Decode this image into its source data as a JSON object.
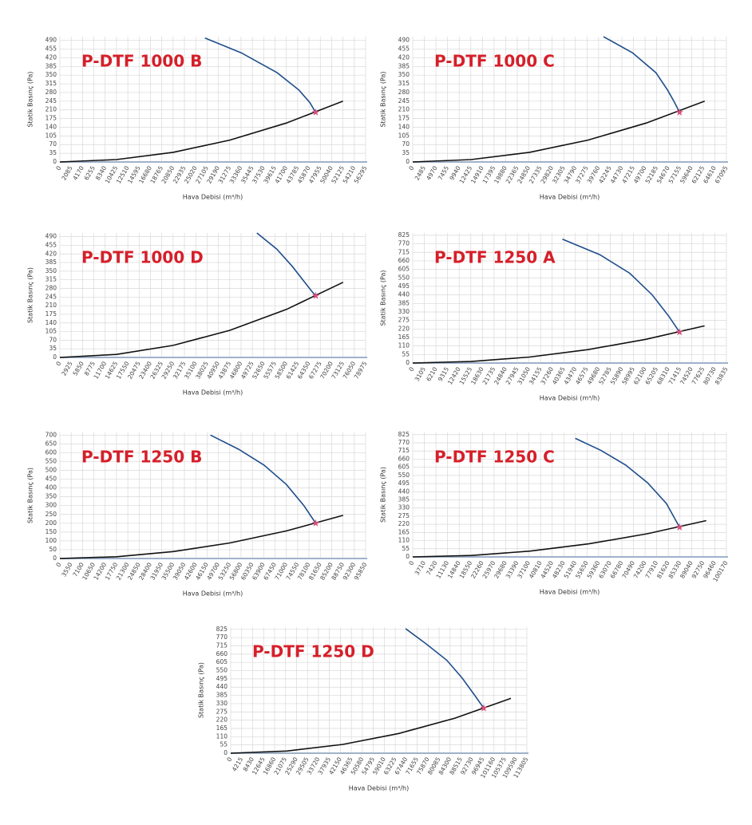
{
  "chart_data": [
    {
      "type": "line",
      "title": "P-DTF 1000 B",
      "y_label": "Statik Basınç (Pa)",
      "x_label": "Hava Debisi (m³/h)",
      "ylim": [
        0,
        505
      ],
      "yticks": [
        0,
        35,
        70,
        105,
        140,
        175,
        210,
        245,
        280,
        315,
        350,
        385,
        420,
        455,
        490
      ],
      "xlim": [
        0,
        56295
      ],
      "xticks": [
        0,
        2085,
        4170,
        6255,
        8340,
        10425,
        12510,
        14595,
        16680,
        18765,
        20850,
        22935,
        25020,
        27105,
        29190,
        31275,
        33360,
        35445,
        37530,
        39615,
        41700,
        43785,
        45870,
        47955,
        50040,
        52125,
        54210,
        56295
      ],
      "grid": true,
      "series": [
        {
          "color": "#1f4e8c",
          "x": [
            26700,
            33400,
            40000,
            44000,
            46000,
            47100
          ],
          "values": [
            500,
            440,
            360,
            290,
            240,
            200
          ]
        },
        {
          "color": "#111111",
          "x": [
            0,
            10425,
            20850,
            31275,
            41700,
            52125
          ],
          "values": [
            0,
            9.8,
            39,
            88,
            157,
            245
          ]
        }
      ],
      "operating_point": {
        "x": 47100,
        "y": 200,
        "color": "#d94f7a"
      }
    },
    {
      "type": "line",
      "title": "P-DTF 1000 C",
      "y_label": "Statik Basınç (Pa)",
      "x_label": "Hava Debisi (m³/h)",
      "ylim": [
        0,
        505
      ],
      "yticks": [
        0,
        35,
        70,
        105,
        140,
        175,
        210,
        245,
        280,
        315,
        350,
        385,
        420,
        455,
        490
      ],
      "xlim": [
        0,
        67095
      ],
      "xticks": [
        0,
        2485,
        4970,
        7455,
        9940,
        12425,
        14910,
        17395,
        19880,
        22365,
        24850,
        27335,
        29820,
        32305,
        34790,
        37275,
        39760,
        42245,
        44730,
        47215,
        49700,
        52185,
        54670,
        57155,
        59640,
        62125,
        64610,
        67095
      ],
      "grid": true,
      "series": [
        {
          "color": "#1f4e8c",
          "x": [
            40800,
            47000,
            52000,
            54500,
            56000,
            57060
          ],
          "values": [
            505,
            440,
            360,
            290,
            240,
            200
          ]
        },
        {
          "color": "#111111",
          "x": [
            0,
            12485,
            24970,
            37455,
            49940,
            62430
          ],
          "values": [
            0,
            9.8,
            39,
            88,
            157,
            245
          ]
        }
      ],
      "operating_point": {
        "x": 57060,
        "y": 200,
        "color": "#d94f7a"
      }
    },
    {
      "type": "line",
      "title": "P-DTF 1000 D",
      "y_label": "Statik Basınç (Pa)",
      "x_label": "Hava Debisi (m³/h)",
      "ylim": [
        0,
        505
      ],
      "yticks": [
        0,
        35,
        70,
        105,
        140,
        175,
        210,
        245,
        280,
        315,
        350,
        385,
        420,
        455,
        490
      ],
      "xlim": [
        0,
        78975
      ],
      "xticks": [
        0,
        2925,
        5850,
        8775,
        11700,
        14625,
        17550,
        20475,
        23400,
        26325,
        29250,
        32175,
        35100,
        38025,
        40950,
        43875,
        46800,
        49725,
        52650,
        55575,
        58500,
        61425,
        64350,
        67275,
        70200,
        73125,
        76050,
        78975
      ],
      "grid": true,
      "series": [
        {
          "color": "#1f4e8c",
          "x": [
            50900,
            56000,
            60000,
            63000,
            65000,
            66090
          ],
          "values": [
            505,
            440,
            370,
            310,
            270,
            250
          ]
        },
        {
          "color": "#111111",
          "x": [
            0,
            14630,
            29260,
            43890,
            58520,
            73150
          ],
          "values": [
            0,
            12.2,
            48.8,
            110,
            195,
            305
          ]
        }
      ],
      "operating_point": {
        "x": 66090,
        "y": 250,
        "color": "#d94f7a"
      }
    },
    {
      "type": "line",
      "title": "P-DTF 1250 A",
      "y_label": "Statik Basınç (Pa)",
      "x_label": "Hava Debisi (m³/h)",
      "ylim": [
        0,
        840
      ],
      "yticks": [
        0,
        55,
        110,
        165,
        220,
        275,
        330,
        385,
        440,
        495,
        550,
        605,
        660,
        715,
        770,
        825
      ],
      "xlim": [
        0,
        83835
      ],
      "xticks": [
        0,
        3105,
        6210,
        9315,
        12420,
        15525,
        18630,
        21735,
        24840,
        27945,
        31050,
        34155,
        37260,
        40365,
        43470,
        46575,
        49680,
        52785,
        55890,
        58995,
        62100,
        65205,
        68310,
        71415,
        74520,
        77625,
        80730,
        83835
      ],
      "grid": true,
      "series": [
        {
          "color": "#1f4e8c",
          "x": [
            40000,
            50000,
            58000,
            64000,
            68500,
            71300
          ],
          "values": [
            800,
            700,
            580,
            440,
            300,
            200
          ]
        },
        {
          "color": "#111111",
          "x": [
            0,
            15600,
            31200,
            46800,
            62400,
            78000
          ],
          "values": [
            0,
            9.6,
            38.4,
            86.4,
            153.6,
            240
          ]
        }
      ],
      "operating_point": {
        "x": 71300,
        "y": 200,
        "color": "#d94f7a"
      }
    },
    {
      "type": "line",
      "title": "P-DTF 1250 B",
      "y_label": "Statik Basınç (Pa)",
      "x_label": "Hava Debisi (m³/h)",
      "ylim": [
        0,
        715
      ],
      "yticks": [
        0,
        50,
        100,
        150,
        200,
        250,
        300,
        350,
        400,
        450,
        500,
        550,
        600,
        650,
        700
      ],
      "xlim": [
        0,
        95850
      ],
      "xticks": [
        0,
        3550,
        7100,
        10650,
        14200,
        17750,
        21300,
        24850,
        28400,
        31950,
        35500,
        39050,
        42600,
        46150,
        49700,
        53250,
        56800,
        60350,
        63900,
        67450,
        71000,
        74550,
        78100,
        81650,
        85200,
        88750,
        92300,
        95850
      ],
      "grid": true,
      "series": [
        {
          "color": "#1f4e8c",
          "x": [
            47200,
            56000,
            64000,
            71000,
            76500,
            80210
          ],
          "values": [
            700,
            620,
            530,
            420,
            300,
            200
          ]
        },
        {
          "color": "#111111",
          "x": [
            0,
            17760,
            35520,
            53270,
            71030,
            88790
          ],
          "values": [
            0,
            9.8,
            39.2,
            88.2,
            156.8,
            245
          ]
        }
      ],
      "operating_point": {
        "x": 80210,
        "y": 200,
        "color": "#d94f7a"
      }
    },
    {
      "type": "line",
      "title": "P-DTF 1250 C",
      "y_label": "Statik Basınç (Pa)",
      "x_label": "Hava Debisi (m³/h)",
      "ylim": [
        0,
        840
      ],
      "yticks": [
        0,
        55,
        110,
        165,
        220,
        275,
        330,
        385,
        440,
        495,
        550,
        605,
        660,
        715,
        770,
        825
      ],
      "xlim": [
        0,
        100170
      ],
      "xticks": [
        0,
        3710,
        7420,
        11130,
        14840,
        18550,
        22260,
        25970,
        29680,
        33390,
        37100,
        40810,
        44520,
        48230,
        51940,
        55650,
        59360,
        63070,
        66780,
        70490,
        74200,
        77910,
        81620,
        85330,
        89040,
        92750,
        96460,
        100170
      ],
      "grid": true,
      "series": [
        {
          "color": "#1f4e8c",
          "x": [
            51900,
            60000,
            68000,
            75000,
            81000,
            85200
          ],
          "values": [
            800,
            720,
            620,
            500,
            360,
            200
          ]
        },
        {
          "color": "#111111",
          "x": [
            0,
            18740,
            37490,
            56230,
            74980,
            93720
          ],
          "values": [
            0,
            9.8,
            39.2,
            88.2,
            156.8,
            245
          ]
        }
      ],
      "operating_point": {
        "x": 85200,
        "y": 200,
        "color": "#d94f7a"
      }
    },
    {
      "type": "line",
      "title": "P-DTF 1250 D",
      "y_label": "Statik Basınç (Pa)",
      "x_label": "Hava Debisi (m³/h)",
      "ylim": [
        0,
        840
      ],
      "yticks": [
        0,
        55,
        110,
        165,
        220,
        275,
        330,
        385,
        440,
        495,
        550,
        605,
        660,
        715,
        770,
        825
      ],
      "xlim": [
        0,
        113805
      ],
      "xticks": [
        0,
        4215,
        8430,
        12645,
        16860,
        21075,
        25290,
        29505,
        33720,
        37935,
        42150,
        46365,
        50580,
        54795,
        59010,
        63225,
        67440,
        71655,
        75870,
        80085,
        84300,
        88515,
        92730,
        96945,
        101160,
        105375,
        109590,
        113805
      ],
      "grid": true,
      "series": [
        {
          "color": "#1f4e8c",
          "x": [
            67200,
            75000,
            83000,
            89000,
            94000,
            97240
          ],
          "values": [
            830,
            730,
            620,
            500,
            380,
            300
          ]
        },
        {
          "color": "#111111",
          "x": [
            0,
            21530,
            43070,
            64600,
            86140,
            107670
          ],
          "values": [
            0,
            14.6,
            58.4,
            131.4,
            233.6,
            365
          ]
        }
      ],
      "operating_point": {
        "x": 97240,
        "y": 300,
        "color": "#d94f7a"
      }
    }
  ]
}
